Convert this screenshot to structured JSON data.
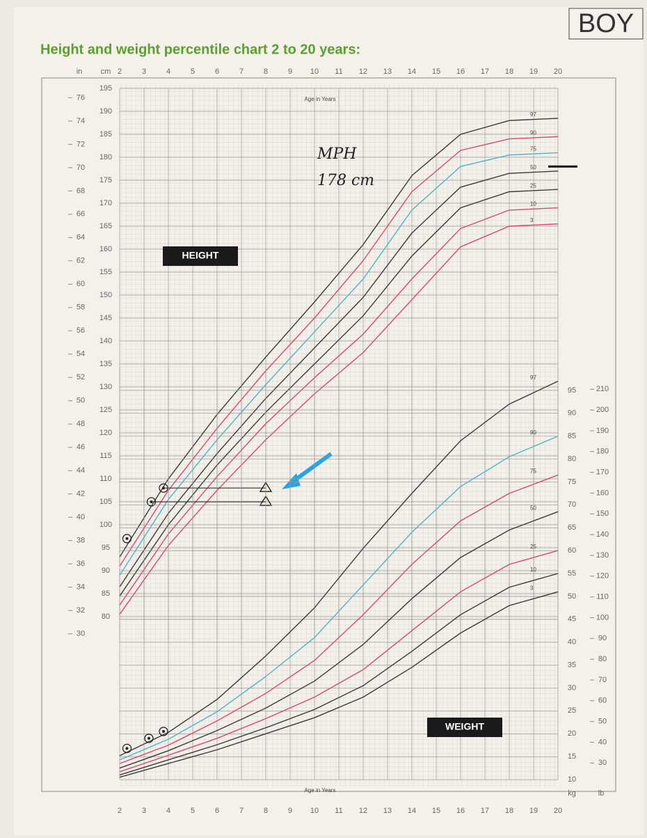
{
  "header": {
    "title": "Height and weight percentile chart 2 to 20 years:",
    "badge": "BOY"
  },
  "chart_data": [
    {
      "type": "line",
      "label": "HEIGHT",
      "x_label": "Age in Years",
      "y_unit": "cm",
      "y2_unit": "in",
      "x": [
        2,
        4,
        6,
        8,
        10,
        12,
        14,
        16,
        18,
        20
      ],
      "xlim": [
        2,
        20
      ],
      "xticks": [
        2,
        3,
        4,
        5,
        6,
        7,
        8,
        9,
        10,
        11,
        12,
        13,
        14,
        15,
        16,
        17,
        18,
        19,
        20
      ],
      "ylim": [
        75,
        195
      ],
      "yticks": [
        80,
        85,
        90,
        95,
        100,
        105,
        110,
        115,
        120,
        125,
        130,
        135,
        140,
        145,
        150,
        155,
        160,
        165,
        170,
        175,
        180,
        185,
        190,
        195
      ],
      "y2lim": [
        29.5,
        76.8
      ],
      "y2ticks": [
        30,
        32,
        34,
        36,
        38,
        40,
        42,
        44,
        46,
        48,
        50,
        52,
        54,
        56,
        58,
        60,
        62,
        64,
        66,
        68,
        70,
        72,
        74,
        76
      ],
      "grid": true,
      "series": [
        {
          "name": "97",
          "color": "#3a3a3a",
          "values": [
            93,
            110,
            124,
            136.5,
            148.5,
            161,
            176,
            185,
            188,
            188.5
          ]
        },
        {
          "name": "90",
          "color": "#d9486b",
          "values": [
            91,
            107.5,
            121,
            133.5,
            145,
            157.5,
            172.5,
            181.5,
            184,
            184.5
          ]
        },
        {
          "name": "75",
          "color": "#4fb3c8",
          "values": [
            89,
            105.5,
            118.5,
            130.5,
            142,
            153.5,
            168.5,
            178,
            180.5,
            181
          ]
        },
        {
          "name": "50",
          "color": "#3a3a3a",
          "values": [
            86.5,
            102.5,
            115.5,
            127.5,
            138.5,
            149.5,
            163.5,
            173.5,
            176.5,
            177
          ]
        },
        {
          "name": "25",
          "color": "#3a3a3a",
          "values": [
            84.5,
            100,
            113,
            124.5,
            135,
            145.5,
            158.5,
            169,
            172.5,
            173
          ]
        },
        {
          "name": "10",
          "color": "#d9486b",
          "values": [
            82.5,
            98,
            110.5,
            122,
            132,
            141.5,
            153.5,
            164.5,
            168.5,
            169
          ]
        },
        {
          "name": "3",
          "color": "#d9486b",
          "values": [
            80.5,
            95.5,
            107.5,
            118.5,
            128.5,
            137.5,
            149,
            160.5,
            165,
            165.5
          ]
        }
      ],
      "points": {
        "x": [
          2.3,
          3.3,
          3.8
        ],
        "values": [
          97,
          105,
          108
        ]
      },
      "targets": {
        "x": [
          8,
          8
        ],
        "values": [
          108,
          105
        ]
      },
      "annotation": {
        "text": "MPH",
        "label": "178 cm",
        "value": 178
      }
    },
    {
      "type": "line",
      "label": "WEIGHT",
      "x_label": "Age in Years",
      "y_unit": "kg",
      "y2_unit": "lb",
      "x": [
        2,
        4,
        6,
        8,
        10,
        12,
        14,
        16,
        18,
        20
      ],
      "xlim": [
        2,
        20
      ],
      "xticks": [
        2,
        3,
        4,
        5,
        6,
        7,
        8,
        9,
        10,
        11,
        12,
        13,
        14,
        15,
        16,
        17,
        18,
        19,
        20
      ],
      "ylim": [
        10,
        100
      ],
      "yticks": [
        10,
        15,
        20,
        25,
        30,
        35,
        40,
        45,
        50,
        55,
        60,
        65,
        70,
        75,
        80,
        85,
        90,
        95
      ],
      "y2lim": [
        22.05,
        220.5
      ],
      "y2ticks": [
        30,
        40,
        50,
        60,
        70,
        80,
        90,
        100,
        110,
        120,
        130,
        140,
        150,
        160,
        170,
        180,
        190,
        200,
        210
      ],
      "grid": true,
      "series": [
        {
          "name": "97",
          "color": "#3a3a3a",
          "values": [
            15.2,
            20.3,
            27.5,
            37,
            47.5,
            60.5,
            72.5,
            84,
            92,
            97
          ]
        },
        {
          "name": "90",
          "color": "#4fb3c8",
          "values": [
            14.3,
            18.8,
            24.8,
            32.5,
            41,
            52.5,
            64,
            74,
            80.5,
            85
          ]
        },
        {
          "name": "75",
          "color": "#d9486b",
          "values": [
            13.5,
            17.5,
            22.8,
            28.8,
            36,
            46,
            57,
            66.5,
            72.5,
            76.5
          ]
        },
        {
          "name": "50",
          "color": "#3a3a3a",
          "values": [
            12.5,
            16.3,
            20.7,
            25.6,
            31.5,
            39.5,
            49.5,
            58.5,
            64.5,
            68.5
          ]
        },
        {
          "name": "25",
          "color": "#d9486b",
          "values": [
            11.7,
            15.3,
            19,
            23.3,
            28,
            34,
            42.5,
            51,
            57,
            60
          ]
        },
        {
          "name": "10",
          "color": "#3a3a3a",
          "values": [
            11,
            14.3,
            17.6,
            21.3,
            25.3,
            30.5,
            38,
            46,
            52,
            55
          ]
        },
        {
          "name": "3",
          "color": "#3a3a3a",
          "values": [
            10.5,
            13.5,
            16.5,
            20,
            23.5,
            28,
            34.5,
            42,
            48,
            51
          ]
        }
      ],
      "points": {
        "x": [
          2.3,
          3.2,
          3.8
        ],
        "values": [
          16.8,
          19,
          20.5
        ]
      }
    }
  ]
}
